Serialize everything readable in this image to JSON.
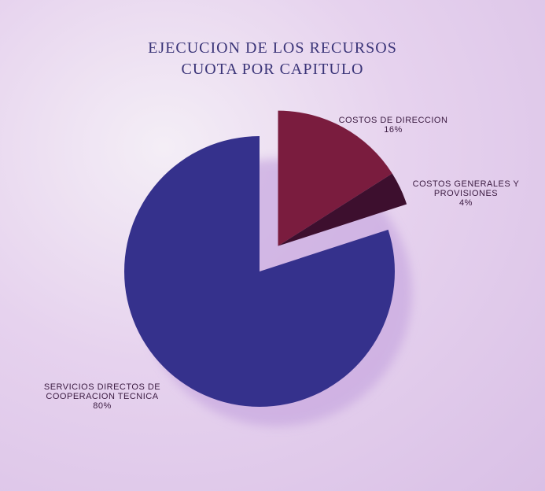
{
  "chart_data": {
    "type": "pie",
    "title": "EJECUCION DE LOS RECURSOS",
    "subtitle": "CUOTA POR CAPITULO",
    "categories": [
      "COSTOS DE DIRECCION",
      "COSTOS GENERALES Y PROVISIONES",
      "SERVICIOS DIRECTOS DE COOPERACION TECNICA"
    ],
    "values": [
      16,
      4,
      80
    ],
    "value_labels": [
      "16%",
      "4%",
      "80%"
    ],
    "colors": [
      "#7a1c3e",
      "#3d0f2e",
      "#35318c"
    ],
    "explode": [
      true,
      true,
      false
    ]
  }
}
